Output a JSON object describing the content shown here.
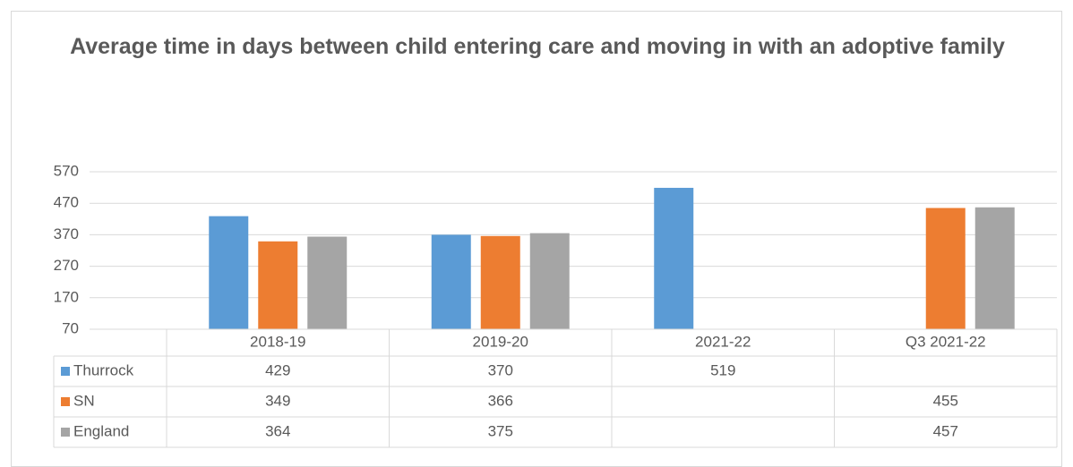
{
  "chart_data": {
    "type": "bar",
    "title": "Average time in days between child entering care and moving in with an adoptive family",
    "categories": [
      "2018-19",
      "2019-20",
      "2021-22",
      "Q3 2021-22"
    ],
    "series": [
      {
        "name": "Thurrock",
        "color": "#5b9bd5",
        "values": [
          429,
          370,
          519,
          null
        ]
      },
      {
        "name": "SN",
        "color": "#ed7d31",
        "values": [
          349,
          366,
          null,
          455
        ]
      },
      {
        "name": "England",
        "color": "#a5a5a5",
        "values": [
          364,
          375,
          null,
          457
        ]
      }
    ],
    "ylim": [
      70,
      570
    ],
    "yticks": [
      70,
      170,
      270,
      370,
      470,
      570
    ],
    "grid": true,
    "data_table": true
  }
}
